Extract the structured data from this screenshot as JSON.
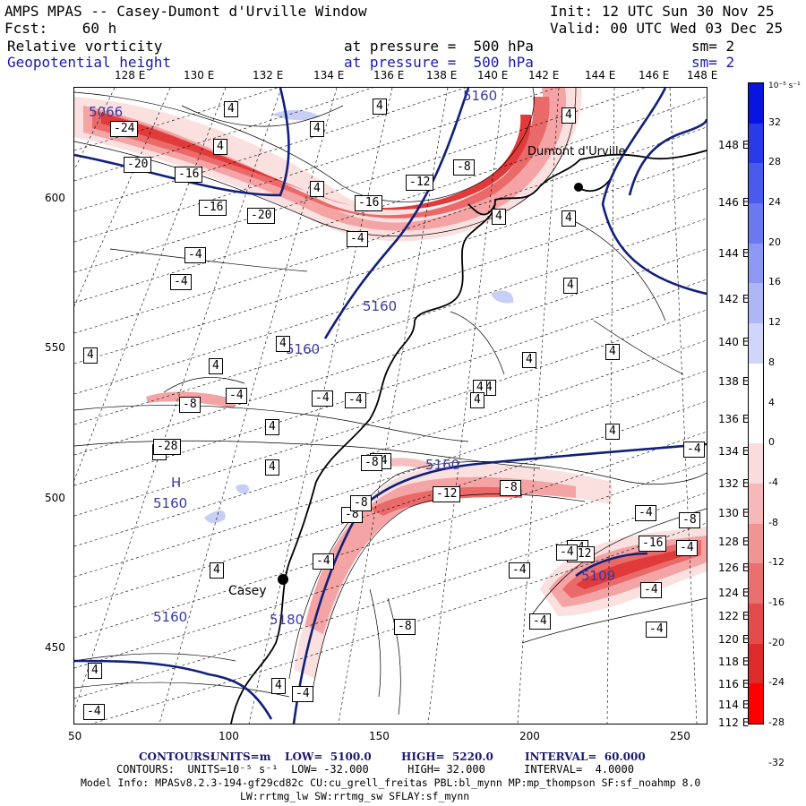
{
  "header": {
    "line1_left": "AMPS MPAS -- Casey-Dumont d'Urville Window",
    "line1_right": "Init: 12 UTC Sun 30 Nov 25",
    "line2_left": "Fcst:    60 h",
    "line2_right": "Valid: 00 UTC Wed 03 Dec 25",
    "field1_name": "Relative vorticity",
    "field1_level": "at pressure =  500 hPa",
    "field1_sm": "sm= 2",
    "field2_name": "Geopotential height",
    "field2_level": "at pressure =  500 hPa",
    "field2_sm": "sm= 2"
  },
  "longitude_labels": [
    "128 E",
    "130 E",
    "132 E",
    "134 E",
    "136 E",
    "138 E",
    "140 E",
    "142 E",
    "144 E",
    "146 E",
    "148 E"
  ],
  "latitude_labels": [
    "148 E",
    "146 E",
    "144 E",
    "142 E",
    "140 E",
    "138 E",
    "136 E",
    "134 E",
    "132 E",
    "130 E",
    "128 E",
    "126 E",
    "124 E",
    "122 E",
    "120 E",
    "118 E",
    "116 E",
    "114 E",
    "112 E"
  ],
  "x_axis": [
    "50",
    "100",
    "150",
    "200",
    "250"
  ],
  "y_axis": [
    "600",
    "550",
    "500",
    "450"
  ],
  "colorbar": {
    "unit": "10⁻⁵ s⁻¹",
    "labels": [
      "32",
      "28",
      "24",
      "20",
      "16",
      "12",
      "8",
      "4",
      "0",
      "-4",
      "-8",
      "-12",
      "-16",
      "-20",
      "-24",
      "-28",
      "-32"
    ],
    "colors": [
      "#0a14e0",
      "#2a3ae6",
      "#4a5aea",
      "#6a7aee",
      "#8c98f2",
      "#aeb6f6",
      "#d0d6fa",
      "#ffffff",
      "#ffffff",
      "#fbdcdc",
      "#f6b8b8",
      "#f09494",
      "#ea7070",
      "#e44c4c",
      "#de2a2a",
      "#ff0000"
    ]
  },
  "places": [
    {
      "name": "Dumont d'Urville"
    },
    {
      "name": "Casey"
    }
  ],
  "height_labels": [
    "5160",
    "5160",
    "5160",
    "5160",
    "5160",
    "5160",
    "5180",
    "5109",
    "5066"
  ],
  "high_marker": "H",
  "vort_labels": [
    "4",
    "4",
    "4",
    "4",
    "4",
    "4",
    "4",
    "4",
    "4",
    "4",
    "4",
    "4",
    "4",
    "4",
    "4",
    "4",
    "4",
    "4",
    "4",
    "4",
    "4",
    "4",
    "4",
    "4",
    "-28",
    "-24",
    "-20",
    "-16",
    "-16",
    "-20",
    "-12",
    "-16",
    "-8",
    "-4",
    "-4",
    "-4",
    "-4",
    "-8",
    "-4",
    "-4",
    "-4",
    "-12",
    "-8",
    "-8",
    "-4",
    "-4",
    "-12",
    "-16",
    "-4",
    "-4",
    "-8",
    "-4",
    "-4",
    "-4",
    "-4",
    "-4",
    "-8",
    "-4",
    "-4",
    "-8",
    "-4",
    "-8"
  ],
  "footer": {
    "contours1_label": "CONTOURS:",
    "contours1_units": "UNITS=m",
    "contours1_low": "LOW=  5100.0",
    "contours1_high": "HIGH=  5220.0",
    "contours1_interval": "INTERVAL=  60.000",
    "contours2": "CONTOURS:  UNITS=10⁻⁵ s⁻¹  LOW= -32.000      HIGH= 32.000      INTERVAL=  4.0000",
    "model_info": "Model Info: MPASv8.2.3-194-gf29cd82c CU:cu_grell_freitas PBL:bl_mynn MP:mp_thompson SF:sf_noahmp 8.0",
    "model_info2": "LW:rrtmg_lw SW:rrtmg_sw SFLAY:sf_mynn"
  }
}
